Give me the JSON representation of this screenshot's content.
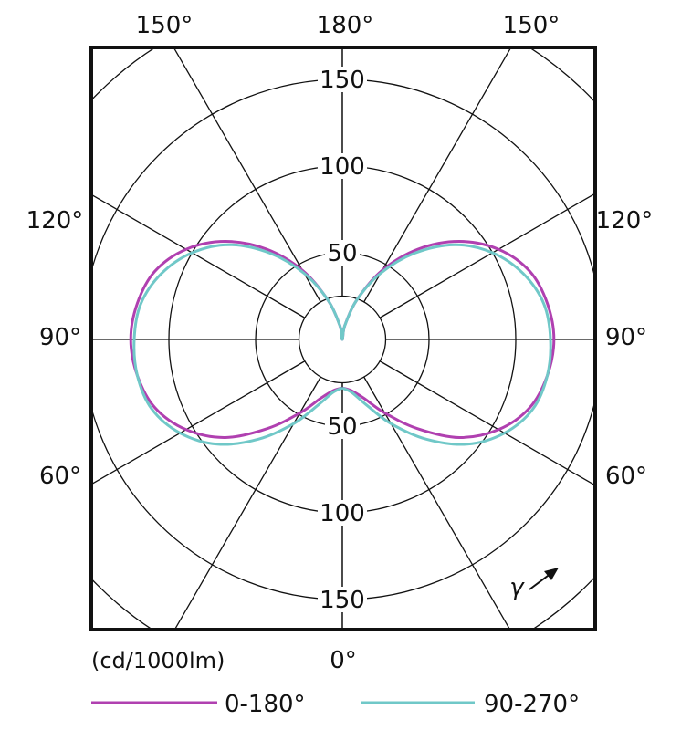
{
  "chart_data": {
    "type": "polar",
    "unit_label": "(cd/1000lm)",
    "radial_max": 175,
    "ring_values": [
      25,
      50,
      100,
      150
    ],
    "ring_labels_top": [
      {
        "r": 150,
        "text": "150"
      },
      {
        "r": 100,
        "text": "100"
      },
      {
        "r": 50,
        "text": "50"
      }
    ],
    "ring_labels_bottom": [
      {
        "r": 50,
        "text": "50"
      },
      {
        "r": 100,
        "text": "100"
      },
      {
        "r": 150,
        "text": "150"
      }
    ],
    "spoke_angles": [
      0,
      30,
      60,
      90,
      120,
      150,
      180
    ],
    "angle_labels": {
      "top_left": "150°",
      "top_center": "180°",
      "top_right": "150°",
      "left_120": "120°",
      "right_120": "120°",
      "left_90": "90°",
      "right_90": "90°",
      "left_60": "60°",
      "right_60": "60°",
      "bottom_center": "0°"
    },
    "gamma_symbol": "γ",
    "series": [
      {
        "name": "0-180°",
        "color": "#b040b0",
        "angles_deg": [
          0,
          10,
          20,
          30,
          40,
          50,
          60,
          70,
          80,
          90,
          100,
          110,
          120,
          130,
          140,
          150,
          160,
          170,
          180
        ],
        "values": [
          28,
          30,
          36,
          49,
          67,
          88,
          104,
          115,
          120,
          122,
          120,
          115,
          104,
          88,
          68,
          46,
          24,
          8,
          0
        ]
      },
      {
        "name": "90-270°",
        "color": "#70c8c8",
        "angles_deg": [
          0,
          10,
          20,
          30,
          40,
          50,
          60,
          70,
          80,
          90,
          100,
          110,
          120,
          130,
          140,
          150,
          160,
          170,
          180
        ],
        "values": [
          28,
          31,
          40,
          56,
          75,
          94,
          108,
          117,
          120,
          120,
          118,
          111,
          100,
          85,
          65,
          44,
          24,
          8,
          0
        ]
      }
    ]
  }
}
